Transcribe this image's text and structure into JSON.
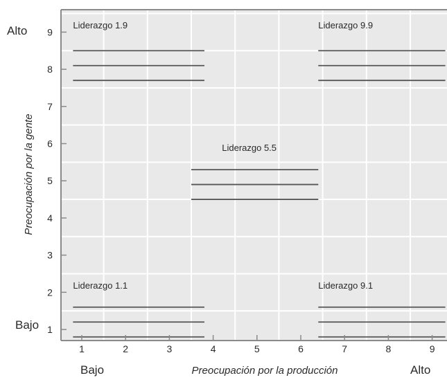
{
  "grid": {
    "x_ticks": [
      "1",
      "2",
      "3",
      "4",
      "5",
      "6",
      "7",
      "8",
      "9"
    ],
    "y_ticks": [
      "1",
      "2",
      "3",
      "4",
      "5",
      "6",
      "7",
      "8",
      "9"
    ],
    "x_axis_title": "Preocupación por la producción",
    "y_axis_title": "Preocupación por la gente",
    "x_low_label": "Bajo",
    "x_high_label": "Alto",
    "y_low_label": "Bajo",
    "y_high_label": "Alto"
  },
  "styles": [
    {
      "label": "Liderazgo 1.9",
      "x_range": [
        0.8,
        3.8
      ],
      "y_lines": [
        8.5,
        8.1,
        7.7
      ],
      "label_pos": [
        0.8,
        9.1
      ]
    },
    {
      "label": "Liderazgo 9.9",
      "x_range": [
        6.4,
        9.3
      ],
      "y_lines": [
        8.5,
        8.1,
        7.7
      ],
      "label_pos": [
        6.4,
        9.1
      ]
    },
    {
      "label": "Liderazgo 5.5",
      "x_range": [
        3.5,
        6.4
      ],
      "y_lines": [
        5.3,
        4.9,
        4.5
      ],
      "label_pos": [
        4.2,
        5.8
      ]
    },
    {
      "label": "Liderazgo 1.1",
      "x_range": [
        0.8,
        3.8
      ],
      "y_lines": [
        1.6,
        1.2,
        0.8
      ],
      "label_pos": [
        0.8,
        2.1
      ]
    },
    {
      "label": "Liderazgo 9.1",
      "x_range": [
        6.4,
        9.3
      ],
      "y_lines": [
        1.6,
        1.2,
        0.8
      ],
      "label_pos": [
        6.4,
        2.1
      ]
    }
  ],
  "colors": {
    "plot_bg": "#e9e9e9",
    "grid": "#ffffff",
    "lines": "#555555",
    "frame": "#8a8a8a"
  }
}
